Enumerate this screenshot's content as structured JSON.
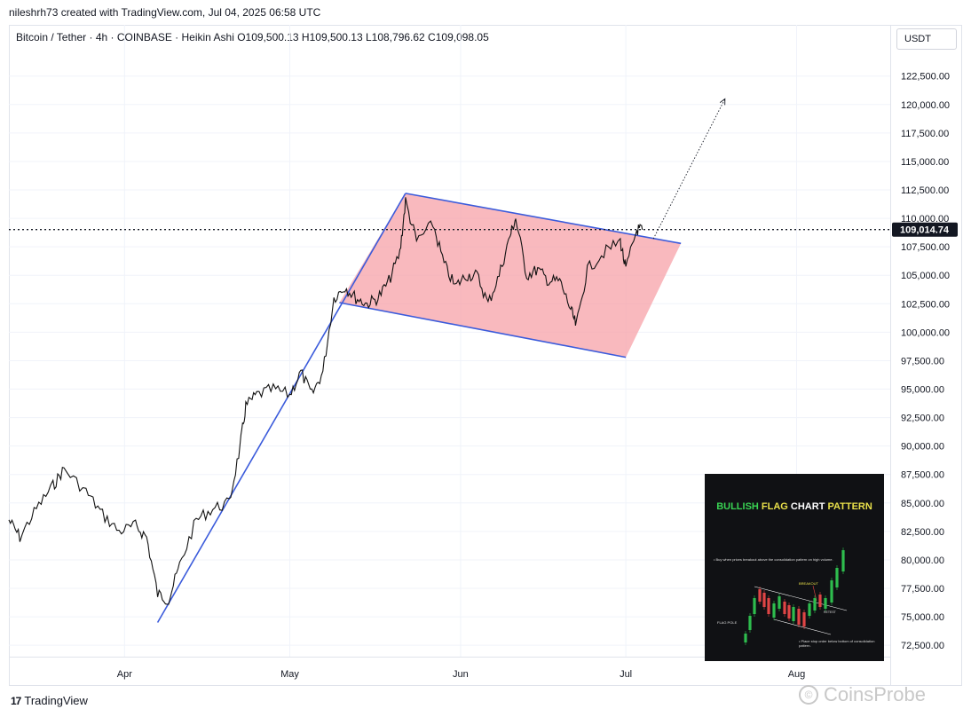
{
  "header": {
    "attribution": "nileshrh73 created with TradingView.com, Jul 04, 2025 06:58 UTC",
    "symbol_line": "Bitcoin / Tether · 4h · COINBASE · Heikin Ashi  O109,500.13  H109,500.13  L108,796.62  C109,098.05"
  },
  "currency": "USDT",
  "price_label": "109,014.74",
  "branding": {
    "logo_text": "TradingView",
    "watermark": "CoinsProbe"
  },
  "inset": {
    "title_a": "BULLISH ",
    "title_b": "FLAG ",
    "title_c": "CHART ",
    "title_d": "PATTERN",
    "note1": "• Buy when prices breakout above the consolidation pattern on high volume.",
    "breakout": "BREAKOUT",
    "flag_pole": "FLAG POLE",
    "retest": "RETEST",
    "note2": "• Place stop order below bottom of consolidation pattern."
  },
  "chart_data": {
    "type": "line",
    "title": "Bitcoin / Tether · 4h · COINBASE · Heikin Ashi",
    "x_tick_labels": [
      "Apr",
      "May",
      "Jun",
      "Jul",
      "Aug"
    ],
    "y_tick_labels": [
      "72,500.00",
      "75,000.00",
      "77,500.00",
      "80,000.00",
      "82,500.00",
      "85,000.00",
      "87,500.00",
      "90,000.00",
      "92,500.00",
      "95,000.00",
      "97,500.00",
      "100,000.00",
      "102,500.00",
      "105,000.00",
      "107,500.00",
      "110,000.00",
      "112,500.00",
      "115,000.00",
      "117,500.00",
      "120,000.00",
      "122,500.00"
    ],
    "ylim": [
      71500,
      127000
    ],
    "x_range": [
      "2025-03-11",
      "2025-08-18"
    ],
    "series": [
      {
        "x": [
          "2025-03-11",
          "2025-03-13",
          "2025-03-16",
          "2025-03-19",
          "2025-03-21",
          "2025-03-25",
          "2025-03-28",
          "2025-03-31",
          "2025-04-03",
          "2025-04-05",
          "2025-04-07",
          "2025-04-09",
          "2025-04-11",
          "2025-04-14",
          "2025-04-17",
          "2025-04-20",
          "2025-04-22",
          "2025-04-23",
          "2025-04-25",
          "2025-04-28",
          "2025-05-01",
          "2025-05-03",
          "2025-05-05",
          "2025-05-07",
          "2025-05-09",
          "2025-05-11",
          "2025-05-13",
          "2025-05-15",
          "2025-05-17",
          "2025-05-19",
          "2025-05-21",
          "2025-05-22",
          "2025-05-24",
          "2025-05-27",
          "2025-05-29",
          "2025-05-31",
          "2025-06-02",
          "2025-06-04",
          "2025-06-06",
          "2025-06-08",
          "2025-06-10",
          "2025-06-11",
          "2025-06-13",
          "2025-06-15",
          "2025-06-17",
          "2025-06-19",
          "2025-06-21",
          "2025-06-22",
          "2025-06-24",
          "2025-06-27",
          "2025-06-30",
          "2025-07-01",
          "2025-07-03",
          "2025-07-04"
        ],
        "y": [
          83500,
          82000,
          84500,
          86500,
          88000,
          86000,
          84000,
          82500,
          83000,
          82000,
          77000,
          76500,
          79500,
          83500,
          84500,
          85000,
          90000,
          93500,
          94500,
          95000,
          94500,
          96500,
          94500,
          96500,
          103000,
          104000,
          103000,
          102500,
          103000,
          104500,
          107000,
          111500,
          108000,
          109500,
          106000,
          104000,
          105000,
          105000,
          102500,
          105000,
          108500,
          110000,
          105000,
          105500,
          104500,
          104500,
          102000,
          100500,
          105500,
          107000,
          108000,
          105500,
          109000,
          109000
        ]
      }
    ],
    "pattern": {
      "name": "bullish flag",
      "flag_pole": [
        [
          "2025-04-07",
          74500
        ],
        [
          "2025-05-22",
          112200
        ]
      ],
      "flag_upper": [
        [
          "2025-05-22",
          112200
        ],
        [
          "2025-07-11",
          107800
        ]
      ],
      "flag_lower": [
        [
          "2025-05-10",
          102600
        ],
        [
          "2025-07-01",
          97800
        ]
      ],
      "projection": [
        [
          "2025-07-06",
          108200
        ],
        [
          "2025-07-19",
          120500
        ]
      ],
      "current_price": 109014.74
    }
  }
}
